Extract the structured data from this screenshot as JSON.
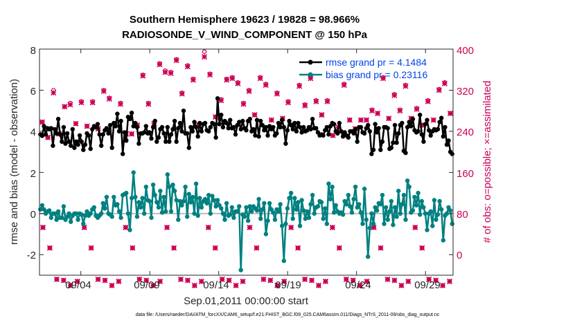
{
  "chart_data": {
    "type": "line",
    "title": "Southern Hemisphere 19623 / 19828 = 98.966%",
    "subtitle": "RADIOSONDE_V_WIND_COMPONENT @ 150 hPa",
    "xlabel": "Sep.01,2011 00:00:00 start",
    "ylabel_left": "rmse and bias (model - observation)",
    "ylabel_right": "# of obs: o=possible; ×=assimilated",
    "footnote": "data file: /Users/raeder/DAI/ATM_forcXX/CAM6_setup/f.e21.FHIST_BGC.f09_025.CAM6assim.011/Diags_NTrS_2011-09/obs_diag_output.nc",
    "xlim_days": [
      0.5,
      30.5
    ],
    "ylim_left": [
      -3,
      8
    ],
    "ylim_right": [
      -40,
      400
    ],
    "xticks": [
      {
        "day": 3.5,
        "label": "09/04"
      },
      {
        "day": 8.5,
        "label": "09/09"
      },
      {
        "day": 13.5,
        "label": "09/14"
      },
      {
        "day": 18.5,
        "label": "09/19"
      },
      {
        "day": 23.5,
        "label": "09/24"
      },
      {
        "day": 28.5,
        "label": "09/29"
      }
    ],
    "yticks_left": [
      "-2",
      "0",
      "2",
      "4",
      "6",
      "8"
    ],
    "yticks_right": [
      "0",
      "80",
      "160",
      "240",
      "320",
      "400"
    ],
    "colors": {
      "rmse": "#000000",
      "bias": "#008080",
      "obs": "#cc0055",
      "legend_text": "#0044ee",
      "zero_line": "#bbbbbb"
    },
    "legend": [
      {
        "name": "rmse grand pr = 4.1484",
        "color": "#000000"
      },
      {
        "name": "bias grand pr = 0.23116",
        "color": "#008080"
      }
    ],
    "series": [
      {
        "name": "rmse",
        "values": [
          3.85,
          3.78,
          4.25,
          3.85,
          4.15,
          4.1,
          4.15,
          3.3,
          4.1,
          3.9,
          4.6,
          3.85,
          3.5,
          4.2,
          3.4,
          3.9,
          3.5,
          3.3,
          4.1,
          3.2,
          3.5,
          3.35,
          3.8,
          3.5,
          3.1,
          3.35,
          3.9,
          3.8,
          3.15,
          4.1,
          4.25,
          4.2,
          4.35,
          3.85,
          3.3,
          3.85,
          4.05,
          4.15,
          3.9,
          4.3,
          3.2,
          4.4,
          4.25,
          4.85,
          4.0,
          4.5,
          2.9,
          3.95,
          3.55,
          4.7,
          4.6,
          4.9,
          4.25,
          4.4,
          4.2,
          3.4,
          3.9,
          3.9,
          3.95,
          4.25,
          3.9,
          3.95,
          3.65,
          4.2,
          4.5,
          3.5,
          3.7,
          4.1,
          4.2,
          3.9,
          3.5,
          4.2,
          3.5,
          3.85,
          4.1,
          4.5,
          3.5,
          4.15,
          4.4,
          4.0,
          5.0,
          3.9,
          3.9,
          3.2,
          4.2,
          4.0,
          4.45,
          4.2,
          3.75,
          4.4,
          4.0,
          4.35,
          4.4,
          4.05,
          4.0,
          4.2,
          4.4,
          4.35,
          3.7,
          5.6,
          4.35,
          4.8,
          4.2,
          4.5,
          4.4,
          4.15,
          4.55,
          4.15,
          4.2,
          3.85,
          4.3,
          4.45,
          4.1,
          4.5,
          4.15,
          4.05,
          4.5,
          4.6,
          4.0,
          4.1,
          3.8,
          4.55,
          3.75,
          4.5,
          4.3,
          4.05,
          4.2,
          3.8,
          4.25,
          4.1,
          4.2,
          3.8,
          3.9,
          4.4,
          4.2,
          4.55,
          4.2,
          3.4,
          4.05,
          4.5,
          4.3,
          4.1,
          4.4,
          4.0,
          4.4,
          4.2,
          3.95,
          4.2,
          4.0,
          4.05,
          4.2,
          4.1,
          4.6,
          4.15,
          4.15,
          3.95,
          3.8,
          3.85,
          3.8,
          4.05,
          4.2,
          3.85,
          4.25,
          4.4,
          4.35,
          4.0,
          3.9,
          4.4,
          4.0,
          3.75,
          3.95,
          3.8,
          3.7,
          4.0,
          4.0,
          3.9,
          4.1,
          3.5,
          4.2,
          4.2,
          3.95,
          3.9,
          4.15,
          4.3,
          4.0,
          2.9,
          3.1,
          4.35,
          3.95,
          4.15,
          3.1,
          3.5,
          4.2,
          4.2,
          4.15,
          3.15,
          3.2,
          3.45,
          4.3,
          3.45,
          3.9,
          4.3,
          4.4,
          3.05,
          2.95,
          4.2,
          4.45,
          4.25,
          4.6,
          4.05,
          3.95,
          4.0,
          4.8,
          3.85,
          3.5,
          4.35,
          4.55,
          4.05,
          3.8,
          4.0,
          4.1,
          4.05,
          4.1,
          4.45,
          4.65,
          3.75,
          4.2,
          3.35,
          3.55,
          3.0,
          2.9
        ]
      },
      {
        "name": "bias",
        "values": [
          0.2,
          0.4,
          0.2,
          0.0,
          0.1,
          0.15,
          -0.2,
          0.0,
          0.0,
          -0.3,
          0.1,
          -0.2,
          -0.2,
          0.35,
          -0.3,
          -0.15,
          0.0,
          -0.4,
          -0.1,
          0.0,
          0.0,
          -0.3,
          0.0,
          -0.05,
          -0.5,
          -0.1,
          0.1,
          -0.1,
          0.0,
          0.2,
          0.3,
          -0.1,
          -0.2,
          -0.1,
          0.0,
          0.5,
          0.25,
          0.8,
          0.0,
          -0.05,
          -0.15,
          0.8,
          0.4,
          0.45,
          0.1,
          -0.2,
          0.9,
          0.95,
          1.0,
          0.0,
          -0.8,
          0.75,
          2.0,
          0.8,
          -0.15,
          0.55,
          0.3,
          0.75,
          0.0,
          1.3,
          0.65,
          0.6,
          -0.2,
          1.4,
          0.9,
          0.55,
          0.3,
          1.1,
          0.05,
          0.8,
          0.1,
          1.9,
          1.3,
          0.1,
          1.4,
          1.1,
          0.65,
          -0.3,
          0.6,
          0.4,
          0.6,
          1.3,
          -0.15,
          0.95,
          0.55,
          0.8,
          0.0,
          1.45,
          -0.1,
          0.75,
          0.3,
          0.6,
          0.7,
          0.5,
          0.9,
          0.0,
          0.85,
          0.65,
          0.35,
          0.65,
          0.4,
          0.25,
          0.0,
          -0.3,
          0.5,
          -0.1,
          -0.05,
          0.3,
          -0.2,
          0.1,
          0.1,
          0.35,
          -2.75,
          -0.05,
          -0.15,
          0.3,
          -0.35,
          0.35,
          0.1,
          0.35,
          0.25,
          0.15,
          0.7,
          -0.25,
          0.2,
          0.5,
          -1.0,
          -0.35,
          0.5,
          0.2,
          0.05,
          -0.3,
          0.2,
          0.1,
          0.45,
          -0.6,
          -2.3,
          -0.5,
          0.25,
          0.75,
          1.0,
          -0.25,
          0.75,
          0.2,
          0.55,
          -0.6,
          0.65,
          0.15,
          -0.25,
          0.1,
          -0.2,
          0.45,
          0.9,
          0.0,
          0.3,
          0.35,
          0.6,
          0.55,
          -0.25,
          0.25,
          -0.5,
          1.45,
          0.7,
          1.3,
          0.05,
          0.4,
          0.1,
          0.0,
          0.05,
          -0.05,
          0.6,
          0.45,
          0.9,
          0.35,
          0.05,
          0.7,
          1.3,
          0.3,
          0.45,
          0.05,
          -0.5,
          1.2,
          -0.3,
          -2.1,
          -0.7,
          0.0,
          -0.5,
          0.3,
          0.15,
          0.5,
          0.45,
          0.9,
          -0.5,
          0.3,
          -0.3,
          0.1,
          0.6,
          -0.55,
          0.3,
          -0.15,
          1.1,
          0.0,
          0.45,
          0.9,
          -0.3,
          1.6,
          1.3,
          0.05,
          0.15,
          0.8,
          0.4,
          1.0,
          -0.05,
          0.6,
          0.3,
          0.0,
          -0.8,
          0.0,
          0.1,
          -0.6,
          0.65,
          -0.3,
          -0.05,
          0.6,
          0.2,
          -1.3,
          -0.1,
          0.0,
          0.3,
          0.15,
          -0.5
        ]
      },
      {
        "name": "obs_possible",
        "values": [
          258,
          228,
          320,
          235,
          288,
          295,
          255,
          298,
          250,
          298,
          245,
          320,
          305,
          252,
          295,
          235,
          235,
          252,
          350,
          295,
          255,
          372,
          358,
          355,
          380,
          315,
          368,
          342,
          252,
          395,
          352,
          268,
          302,
          342,
          345,
          335,
          295,
          320,
          272,
          345,
          332,
          262,
          315,
          265,
          298,
          252,
          330,
          292,
          345,
          300,
          272,
          300,
          232,
          248,
          332,
          262,
          245,
          262,
          262,
          282,
          275,
          345,
          265,
          312,
          282,
          330,
          265,
          285,
          252,
          300,
          262,
          322,
          335,
          275
        ]
      },
      {
        "name": "obs_assim",
        "values": [
          258,
          228,
          315,
          235,
          288,
          292,
          255,
          296,
          250,
          296,
          245,
          318,
          303,
          252,
          293,
          235,
          235,
          252,
          348,
          293,
          255,
          370,
          355,
          353,
          378,
          313,
          366,
          340,
          252,
          385,
          350,
          268,
          300,
          340,
          343,
          333,
          293,
          318,
          272,
          343,
          330,
          262,
          313,
          265,
          296,
          252,
          328,
          290,
          343,
          298,
          272,
          298,
          232,
          248,
          330,
          262,
          245,
          262,
          262,
          280,
          275,
          343,
          265,
          310,
          280,
          328,
          265,
          283,
          252,
          298,
          262,
          320,
          333,
          275
        ]
      },
      {
        "name": "obs_low",
        "values": [
          53,
          13,
          -48,
          -50,
          -60,
          -52
        ]
      }
    ]
  }
}
